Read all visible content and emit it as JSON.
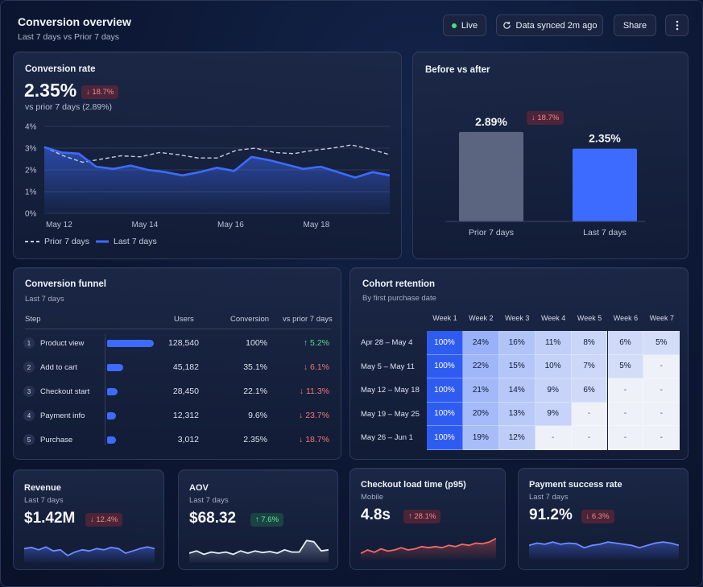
{
  "header": {
    "title": "Conversion overview",
    "subtitle": "Last 7 days vs Prior 7 days",
    "live_label": "Live",
    "sync_label": "Data synced 2m ago",
    "share_label": "Share"
  },
  "conversion_rate": {
    "title": "Conversion rate",
    "value": "2.35%",
    "change": "↓ 18.7%",
    "comparison": "vs prior 7 days (2.89%)",
    "legend_prior": "Prior 7 days",
    "legend_last": "Last 7 days",
    "chart_data": {
      "type": "line",
      "y_ticks": [
        "4%",
        "3%",
        "2%",
        "1%",
        "0%"
      ],
      "x_ticks": [
        "May 12",
        "May 14",
        "May 16",
        "May 18"
      ],
      "ylim": [
        0,
        4
      ],
      "grid": true,
      "legend": "bottom-left",
      "series": [
        {
          "name": "Prior 7 days",
          "values": [
            3.05,
            2.65,
            2.35,
            2.5,
            2.65,
            2.6,
            2.8,
            2.7,
            2.55,
            2.55,
            2.9,
            3.0,
            2.8,
            2.75,
            2.9,
            3.0,
            3.15,
            2.95,
            2.7
          ],
          "color": "#c3cbe0",
          "dashed": true
        },
        {
          "name": "Last 7 days",
          "values": [
            3.05,
            2.8,
            2.75,
            2.15,
            2.05,
            2.2,
            2.0,
            1.9,
            1.75,
            1.9,
            2.1,
            1.95,
            2.6,
            2.45,
            2.25,
            2.05,
            2.15,
            1.9,
            1.65,
            1.9,
            1.75
          ],
          "color": "#3d6bff"
        }
      ]
    }
  },
  "before_after": {
    "title": "Before vs after",
    "change": "↓ 18.7%",
    "chart_data": {
      "type": "bar",
      "categories": [
        "Prior 7 days",
        "Last 7 days"
      ],
      "values": [
        2.89,
        2.35
      ],
      "value_labels": [
        "2.89%",
        "2.35%"
      ],
      "colors": [
        "#5b6580",
        "#3d6bff"
      ],
      "ylim": [
        0,
        3.9
      ]
    }
  },
  "funnel": {
    "title": "Conversion funnel",
    "subtitle": "Last 7 days",
    "headers": {
      "step": "Step",
      "users": "Users",
      "conversion": "Conversion",
      "vs_prior": "vs prior 7 days"
    },
    "rows": [
      {
        "num": "1",
        "label": "Product view",
        "users": "128,540",
        "conversion": "100%",
        "change": "↑ 5.2%",
        "dir": "up",
        "frac": 1.0
      },
      {
        "num": "2",
        "label": "Add to cart",
        "users": "45,182",
        "conversion": "35.1%",
        "change": "↓ 6.1%",
        "dir": "down",
        "frac": 0.351
      },
      {
        "num": "3",
        "label": "Checkout start",
        "users": "28,450",
        "conversion": "22.1%",
        "change": "↓ 11.3%",
        "dir": "down",
        "frac": 0.221
      },
      {
        "num": "4",
        "label": "Payment info",
        "users": "12,312",
        "conversion": "9.6%",
        "change": "↓ 23.7%",
        "dir": "down",
        "frac": 0.096
      },
      {
        "num": "5",
        "label": "Purchase",
        "users": "3,012",
        "conversion": "2.35%",
        "change": "↓ 18.7%",
        "dir": "down",
        "frac": 0.0235
      }
    ]
  },
  "cohort": {
    "title": "Cohort retention",
    "subtitle": "By first purchase date",
    "weeks": [
      "Week 1",
      "Week 2",
      "Week 3",
      "Week 4",
      "Week 5",
      "Week 6",
      "Week 7"
    ],
    "rows": [
      {
        "label": "Apr 28 – May 4",
        "values": [
          "100%",
          "24%",
          "16%",
          "11%",
          "8%",
          "6%",
          "5%"
        ]
      },
      {
        "label": "May 5 – May 11",
        "values": [
          "100%",
          "22%",
          "15%",
          "10%",
          "7%",
          "5%",
          "-"
        ]
      },
      {
        "label": "May 12 – May 18",
        "values": [
          "100%",
          "21%",
          "14%",
          "9%",
          "6%",
          "-",
          "-"
        ]
      },
      {
        "label": "May 19 – May 25",
        "values": [
          "100%",
          "20%",
          "13%",
          "9%",
          "-",
          "-",
          "-"
        ]
      },
      {
        "label": "May 26 – Jun 1",
        "values": [
          "100%",
          "19%",
          "12%",
          "-",
          "-",
          "-",
          "-"
        ]
      }
    ]
  },
  "kpis": [
    {
      "title": "Revenue",
      "subtitle": "Last 7 days",
      "value": "$1.42M",
      "change": "↓ 12.4%",
      "dir": "down",
      "line_color": "#6e8bff",
      "fill_color": "#3d5bd0",
      "spark": [
        0.55,
        0.6,
        0.5,
        0.62,
        0.45,
        0.5,
        0.25,
        0.4,
        0.5,
        0.45,
        0.55,
        0.5,
        0.6,
        0.55,
        0.35,
        0.45,
        0.55,
        0.62,
        0.55
      ]
    },
    {
      "title": "AOV",
      "subtitle": "Last 7 days",
      "value": "$68.32",
      "change": "↑ 7.6%",
      "dir": "up",
      "line_color": "#e8edf7",
      "fill_color": "#8892aa",
      "spark": [
        0.35,
        0.45,
        0.3,
        0.4,
        0.35,
        0.4,
        0.3,
        0.45,
        0.35,
        0.45,
        0.38,
        0.42,
        0.35,
        0.5,
        0.4,
        0.4,
        0.9,
        0.85,
        0.45,
        0.5
      ]
    },
    {
      "title": "Checkout load time (p95)",
      "subtitle": "Mobile",
      "value": "4.8s",
      "change": "↑ 28.1%",
      "dir": "down",
      "line_color": "#ef6b6b",
      "fill_color": "#b04545",
      "spark": [
        0.2,
        0.35,
        0.25,
        0.4,
        0.3,
        0.35,
        0.45,
        0.35,
        0.4,
        0.5,
        0.45,
        0.5,
        0.45,
        0.55,
        0.5,
        0.6,
        0.55,
        0.65,
        0.62,
        0.7,
        0.85
      ]
    },
    {
      "title": "Payment success rate",
      "subtitle": "Last 7 days",
      "value": "91.2%",
      "change": "↓ 6.3%",
      "dir": "down",
      "line_color": "#6e8bff",
      "fill_color": "#3d5bd0",
      "spark": [
        0.55,
        0.65,
        0.6,
        0.7,
        0.6,
        0.65,
        0.62,
        0.45,
        0.55,
        0.6,
        0.7,
        0.65,
        0.6,
        0.55,
        0.45,
        0.55,
        0.65,
        0.7,
        0.65,
        0.55
      ]
    }
  ]
}
